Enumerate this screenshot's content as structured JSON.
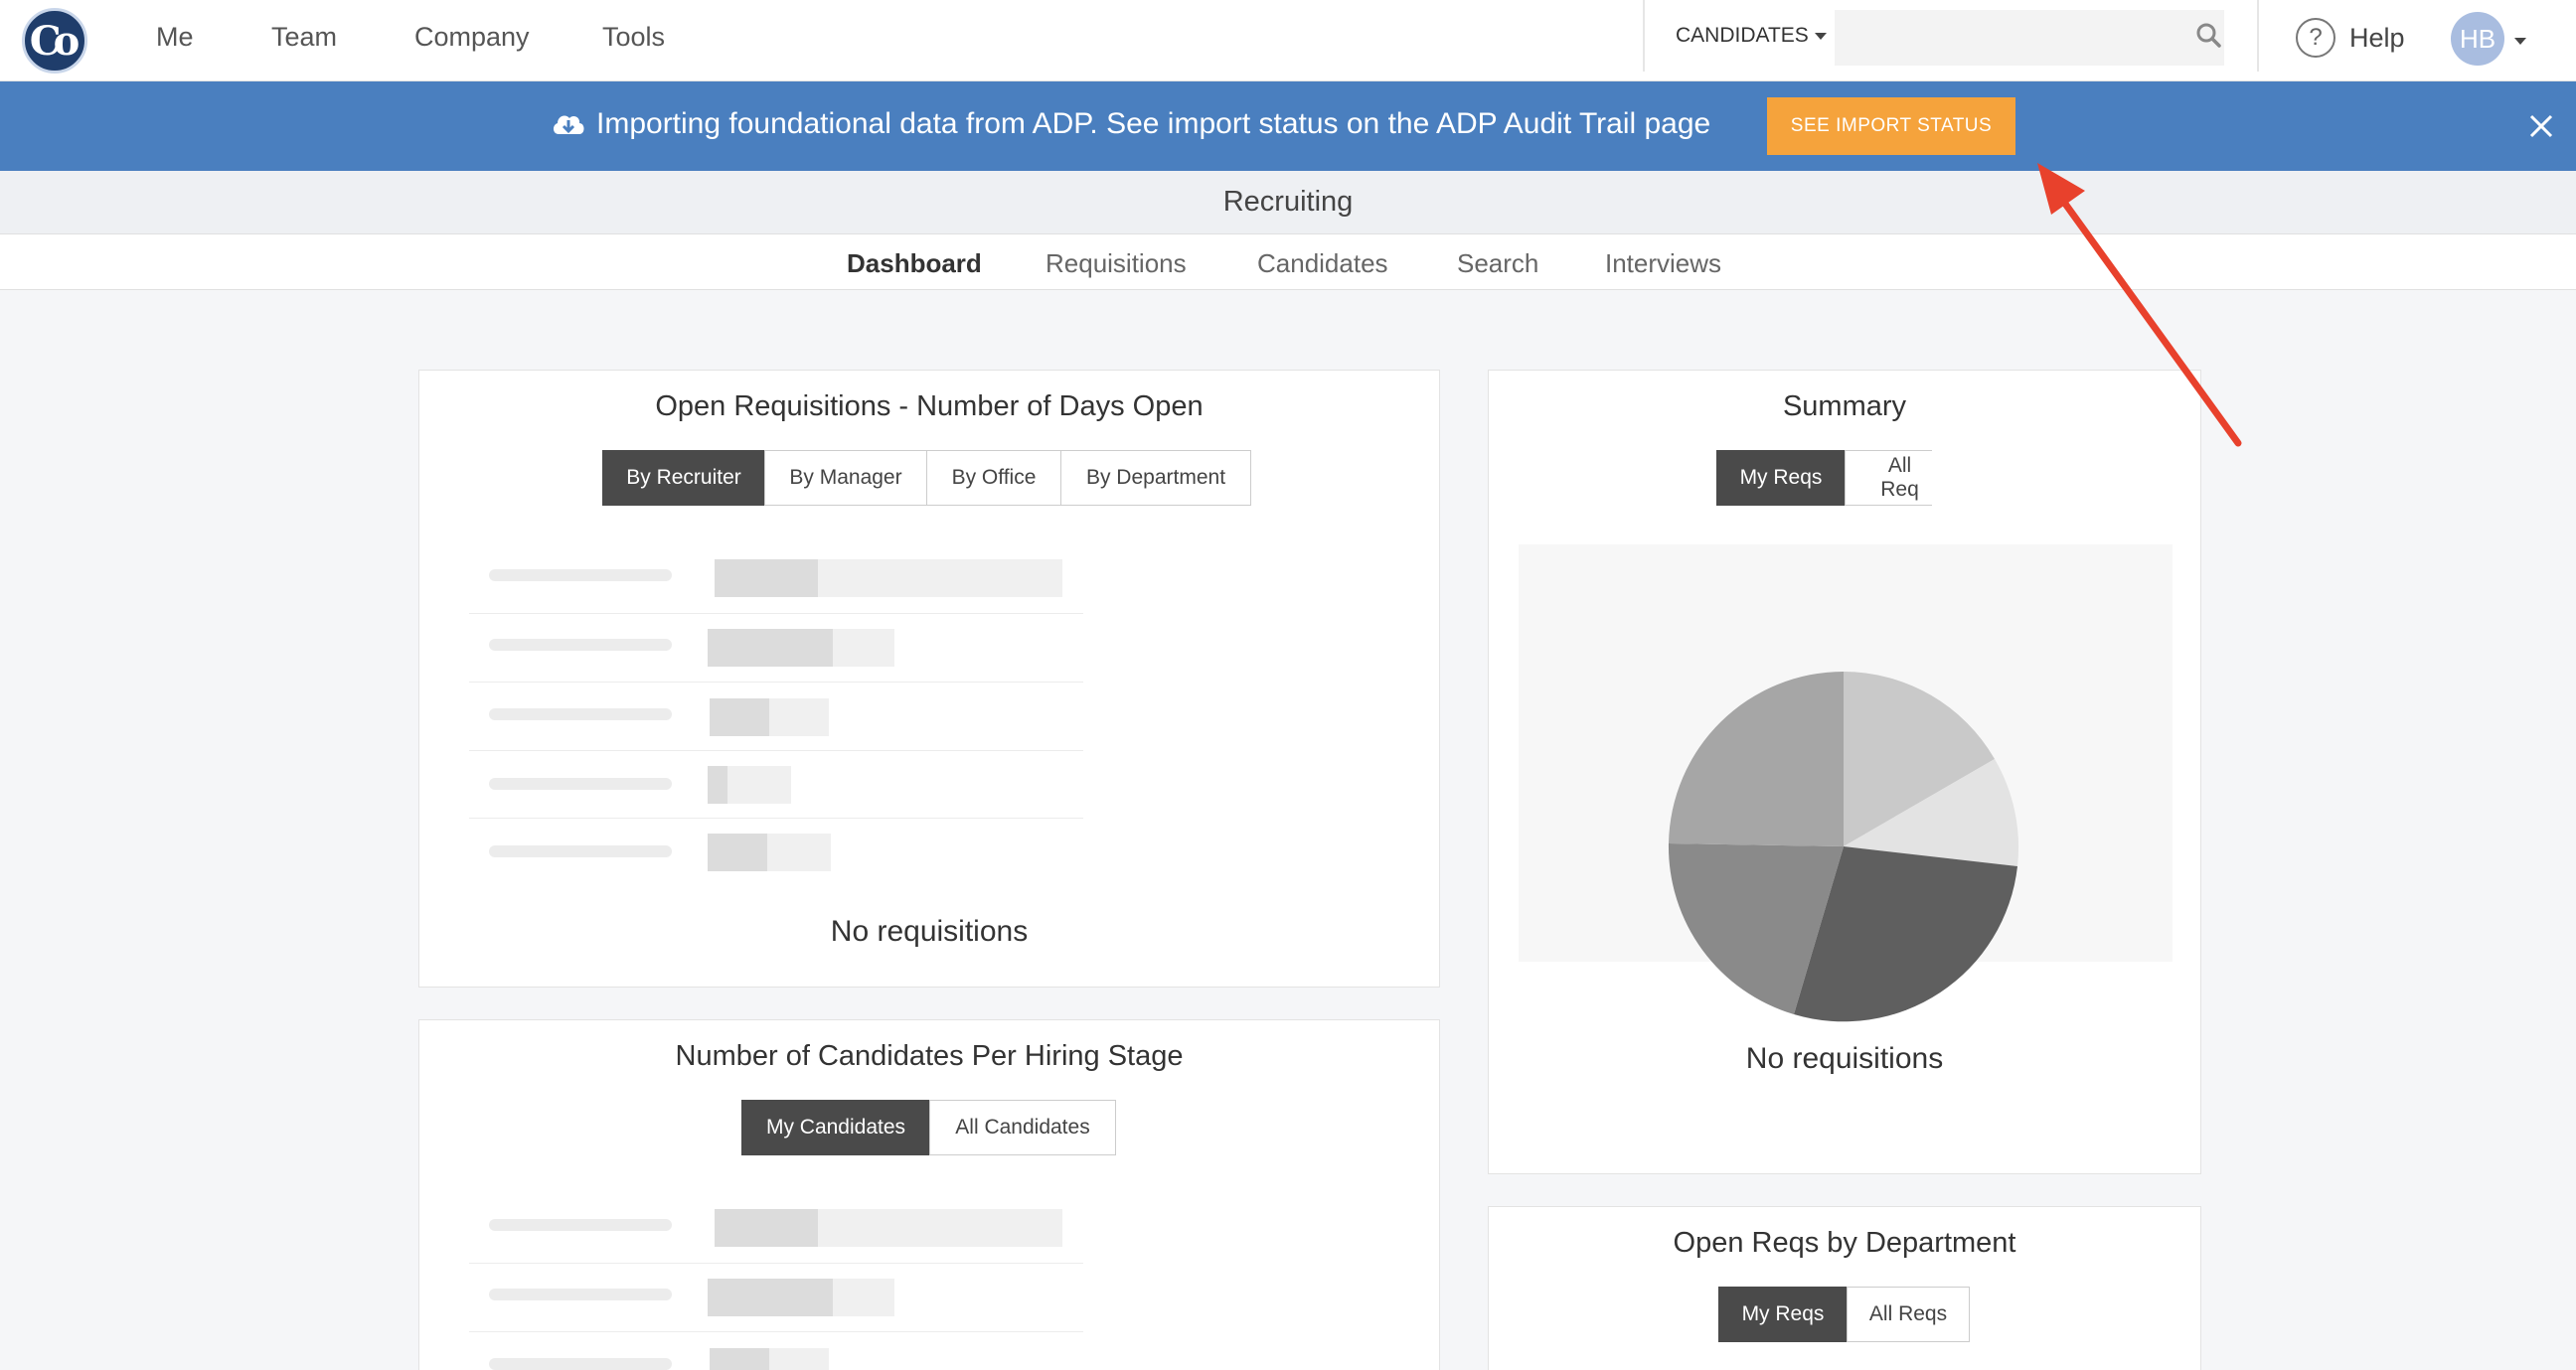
{
  "nav": {
    "logo_text": "Co",
    "items": [
      "Me",
      "Team",
      "Company",
      "Tools"
    ],
    "candidates_select": "CANDIDATES",
    "search_placeholder": "",
    "help_label": "Help",
    "avatar_initials": "HB"
  },
  "banner": {
    "message": "Importing foundational data from ADP. See import status on the ADP Audit Trail page",
    "button_label": "SEE IMPORT STATUS"
  },
  "section": {
    "title": "Recruiting",
    "tabs": [
      "Dashboard",
      "Requisitions",
      "Candidates",
      "Search",
      "Interviews"
    ],
    "active_tab": "Dashboard"
  },
  "cards": {
    "open_reqs": {
      "title": "Open Requisitions - Number of Days Open",
      "buttons": [
        "By Recruiter",
        "By Manager",
        "By Office",
        "By Department"
      ],
      "empty": "No requisitions"
    },
    "summary": {
      "title": "Summary",
      "buttons": [
        "My Reqs",
        "All Req"
      ],
      "empty": "No requisitions"
    },
    "candidates_stage": {
      "title": "Number of Candidates Per Hiring Stage",
      "buttons": [
        "My Candidates",
        "All Candidates"
      ]
    },
    "open_reqs_dept": {
      "title": "Open Reqs by Department",
      "buttons": [
        "My Reqs",
        "All Reqs"
      ]
    }
  },
  "colors": {
    "banner_bg": "#4a7fbf",
    "import_button": "#f5a33c",
    "annotation_arrow": "#e8412c",
    "active_segment": "#4a4a4a"
  }
}
